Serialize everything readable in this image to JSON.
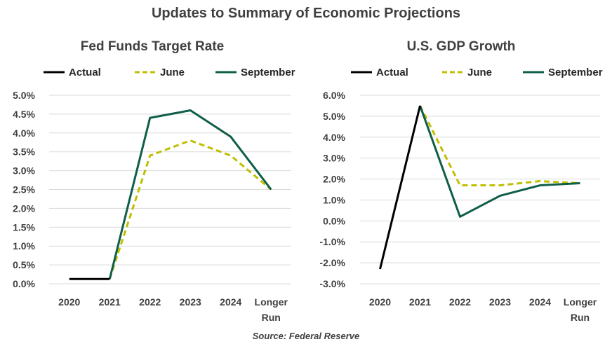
{
  "title": "Updates to Summary of Economic Projections",
  "source": "Source: Federal Reserve",
  "colors": {
    "actual": "#000000",
    "june": "#bfbf00",
    "september": "#0f5e4a",
    "grid": "#d9d9d9"
  },
  "chart_data": [
    {
      "type": "line",
      "title": "Fed Funds Target Rate",
      "categories": [
        [
          "2020"
        ],
        [
          "2021"
        ],
        [
          "2022"
        ],
        [
          "2023"
        ],
        [
          "2024"
        ],
        [
          "Longer",
          "Run"
        ]
      ],
      "y_ticks": [
        "0.0%",
        "0.5%",
        "1.0%",
        "1.5%",
        "2.0%",
        "2.5%",
        "3.0%",
        "3.5%",
        "4.0%",
        "4.5%",
        "5.0%"
      ],
      "ylim": [
        0,
        5
      ],
      "grid": true,
      "legend": "top",
      "series": [
        {
          "name": "Actual",
          "style": "solid",
          "color": "#000000",
          "values": [
            0.125,
            0.125,
            null,
            null,
            null,
            null
          ]
        },
        {
          "name": "June",
          "style": "dashed",
          "color": "#bfbf00",
          "values": [
            null,
            0.125,
            3.4,
            3.8,
            3.4,
            2.5
          ]
        },
        {
          "name": "September",
          "style": "solid",
          "color": "#0f5e4a",
          "values": [
            null,
            0.125,
            4.4,
            4.6,
            3.9,
            2.5
          ]
        }
      ]
    },
    {
      "type": "line",
      "title": "U.S. GDP Growth",
      "categories": [
        [
          "2020"
        ],
        [
          "2021"
        ],
        [
          "2022"
        ],
        [
          "2023"
        ],
        [
          "2024"
        ],
        [
          "Longer",
          "Run"
        ]
      ],
      "y_ticks": [
        "-3.0%",
        "-2.0%",
        "-1.0%",
        "0.0%",
        "1.0%",
        "2.0%",
        "3.0%",
        "4.0%",
        "5.0%",
        "6.0%"
      ],
      "ylim": [
        -3,
        6
      ],
      "grid": true,
      "legend": "top",
      "series": [
        {
          "name": "Actual",
          "style": "solid",
          "color": "#000000",
          "values": [
            -2.3,
            5.5,
            null,
            null,
            null,
            null
          ]
        },
        {
          "name": "June",
          "style": "dashed",
          "color": "#bfbf00",
          "values": [
            null,
            5.5,
            1.7,
            1.7,
            1.9,
            1.8
          ]
        },
        {
          "name": "September",
          "style": "solid",
          "color": "#0f5e4a",
          "values": [
            null,
            5.5,
            0.2,
            1.2,
            1.7,
            1.8
          ]
        }
      ]
    }
  ]
}
